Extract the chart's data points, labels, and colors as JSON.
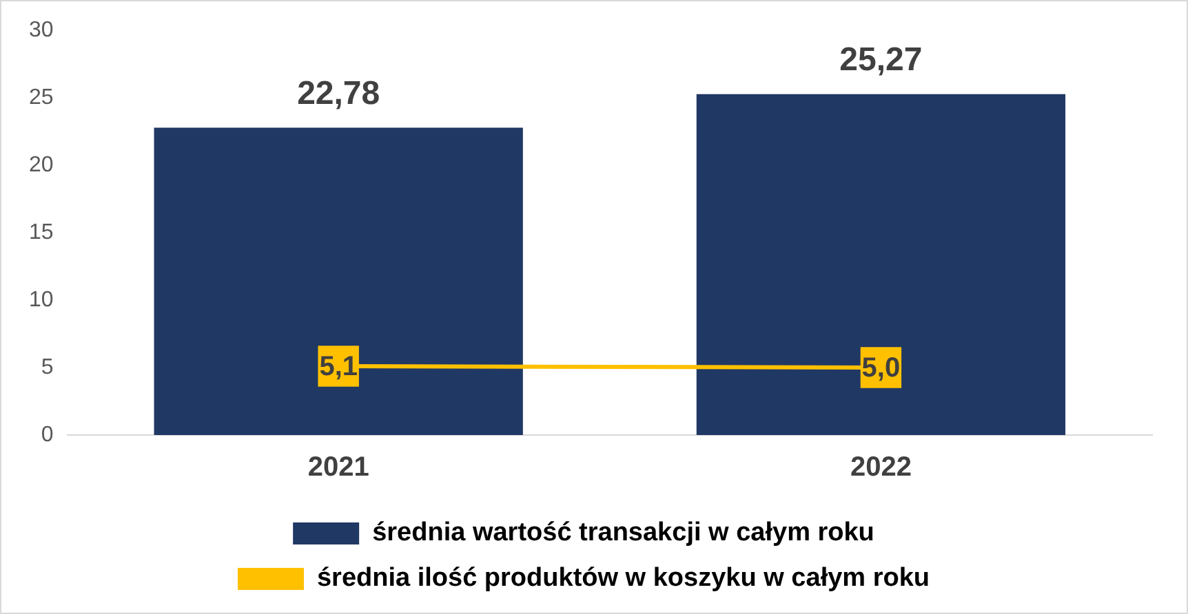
{
  "chart_data": {
    "type": "bar",
    "categories": [
      "2021",
      "2022"
    ],
    "series": [
      {
        "name": "średnia wartość transakcji w całym roku",
        "color": "#203864",
        "values": [
          22.78,
          25.27
        ],
        "value_labels": [
          "22,78",
          "25,27"
        ]
      },
      {
        "type": "line",
        "name": "średnia ilość produktów w koszyku w całym roku",
        "color": "#ffc000",
        "values": [
          5.1,
          5.0
        ],
        "value_labels": [
          "5,1",
          "5,0"
        ]
      }
    ],
    "ylim": [
      0,
      30
    ],
    "yticks": [
      0,
      5,
      10,
      15,
      20,
      25,
      30
    ],
    "grid": false,
    "legend": "bottom",
    "marker": "square"
  }
}
